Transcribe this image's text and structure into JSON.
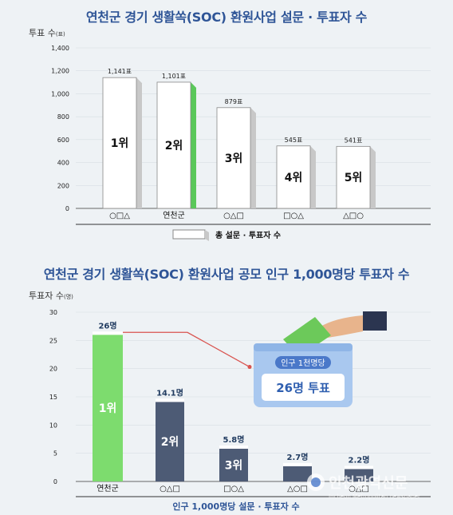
{
  "chart_data": [
    {
      "type": "bar",
      "title": "연천군 경기 생활쏙(SOC) 환원사업 설문 · 투표자  수",
      "ylabel": "투표 수",
      "ylabel_unit": "(표)",
      "ylim": [
        0,
        1400
      ],
      "yticks": [
        "0",
        "200",
        "400",
        "600",
        "800",
        "1,000",
        "1,200",
        "1,400"
      ],
      "categories": [
        "○□△",
        "연천군",
        "○△□",
        "□○△",
        "△□○"
      ],
      "values": [
        1141,
        1101,
        879,
        545,
        541
      ],
      "value_labels": [
        "1,141표",
        "1,101표",
        "879표",
        "545표",
        "541표"
      ],
      "rank_labels": [
        "1위",
        "2위",
        "3위",
        "4위",
        "5위"
      ],
      "legend": "총 설문 · 투표자 수",
      "highlight_index": 1,
      "colors": {
        "bar": "#ffffff",
        "bar_side": "#c8c8c8",
        "highlight_side": "#5ac85a"
      }
    },
    {
      "type": "bar",
      "title": "연천군 경기 생활쏙(SOC) 환원사업 공모 인구 1,000명당 투표자 수",
      "ylabel": "투표자 수",
      "ylabel_unit": "(명)",
      "ylim": [
        0,
        30
      ],
      "yticks": [
        "0",
        "5",
        "10",
        "15",
        "20",
        "25",
        "30"
      ],
      "categories": [
        "연천군",
        "○△□",
        "□○△",
        "△○□",
        "○△□"
      ],
      "values": [
        26,
        14.1,
        5.8,
        2.7,
        2.2
      ],
      "value_labels": [
        "26명",
        "14.1명",
        "5.8명",
        "2.7명",
        "2.2명"
      ],
      "rank_labels": [
        "1위",
        "2위",
        "3위",
        "4위",
        "5위"
      ],
      "legend": "인구 1,000명당 설문 · 투표자 수",
      "callout": {
        "line1": "인구 1천명당",
        "line2": "26명 투표"
      },
      "colors": {
        "first_bar": "#7ddc6e",
        "other_bars": "#4d5b75",
        "callout_line": "#d9534f",
        "box": "#a9c8ef"
      }
    }
  ],
  "watermark": {
    "name": "인천광역신문",
    "sub": "Incheon Metropolitan newspaper"
  }
}
